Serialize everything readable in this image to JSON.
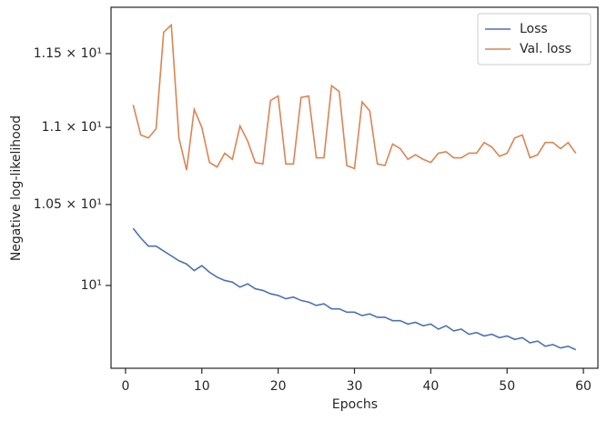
{
  "chart_data": {
    "type": "line",
    "xlabel": "Epochs",
    "ylabel": "Negative log-likelihood",
    "ylog": true,
    "legend": "upper right",
    "x": [
      1,
      2,
      3,
      4,
      5,
      6,
      7,
      8,
      9,
      10,
      11,
      12,
      13,
      14,
      15,
      16,
      17,
      18,
      19,
      20,
      21,
      22,
      23,
      24,
      25,
      26,
      27,
      28,
      29,
      30,
      31,
      32,
      33,
      34,
      35,
      36,
      37,
      38,
      39,
      40,
      41,
      42,
      43,
      44,
      45,
      46,
      47,
      48,
      49,
      50,
      51,
      52,
      53,
      54,
      55,
      56,
      57,
      58,
      59
    ],
    "xlim": [
      -1.9,
      61.9
    ],
    "xticks": [
      0,
      10,
      20,
      30,
      40,
      50,
      60
    ],
    "ylim": [
      9.513,
      11.826
    ],
    "yticks": [
      {
        "value": 10,
        "label": "10¹"
      },
      {
        "value": 10.5,
        "label": "1.05 × 10¹"
      },
      {
        "value": 11,
        "label": "1.1 × 10¹"
      },
      {
        "value": 11.5,
        "label": "1.15 × 10¹"
      }
    ],
    "series": [
      {
        "name": "Loss",
        "color": "#4c72b0",
        "values": [
          10.35,
          10.29,
          10.24,
          10.24,
          10.21,
          10.18,
          10.15,
          10.13,
          10.09,
          10.12,
          10.08,
          10.05,
          10.03,
          10.02,
          9.99,
          10.01,
          9.98,
          9.97,
          9.95,
          9.94,
          9.92,
          9.93,
          9.91,
          9.9,
          9.88,
          9.89,
          9.86,
          9.86,
          9.84,
          9.84,
          9.82,
          9.83,
          9.81,
          9.81,
          9.79,
          9.79,
          9.77,
          9.78,
          9.76,
          9.77,
          9.74,
          9.76,
          9.73,
          9.74,
          9.71,
          9.72,
          9.7,
          9.71,
          9.69,
          9.7,
          9.68,
          9.69,
          9.66,
          9.67,
          9.64,
          9.65,
          9.63,
          9.64,
          9.62
        ]
      },
      {
        "name": "Val. loss",
        "color": "#dd8452",
        "values": [
          11.15,
          10.95,
          10.93,
          10.99,
          11.65,
          11.7,
          10.93,
          10.72,
          11.12,
          11.0,
          10.77,
          10.74,
          10.83,
          10.79,
          11.01,
          10.91,
          10.77,
          10.76,
          11.18,
          11.21,
          10.76,
          10.76,
          11.2,
          11.21,
          10.8,
          10.8,
          11.28,
          11.24,
          10.75,
          10.73,
          11.17,
          11.11,
          10.76,
          10.75,
          10.89,
          10.86,
          10.79,
          10.82,
          10.79,
          10.77,
          10.83,
          10.84,
          10.8,
          10.8,
          10.83,
          10.83,
          10.9,
          10.87,
          10.81,
          10.83,
          10.93,
          10.95,
          10.8,
          10.82,
          10.9,
          10.9,
          10.86,
          10.9,
          10.83
        ]
      }
    ]
  }
}
